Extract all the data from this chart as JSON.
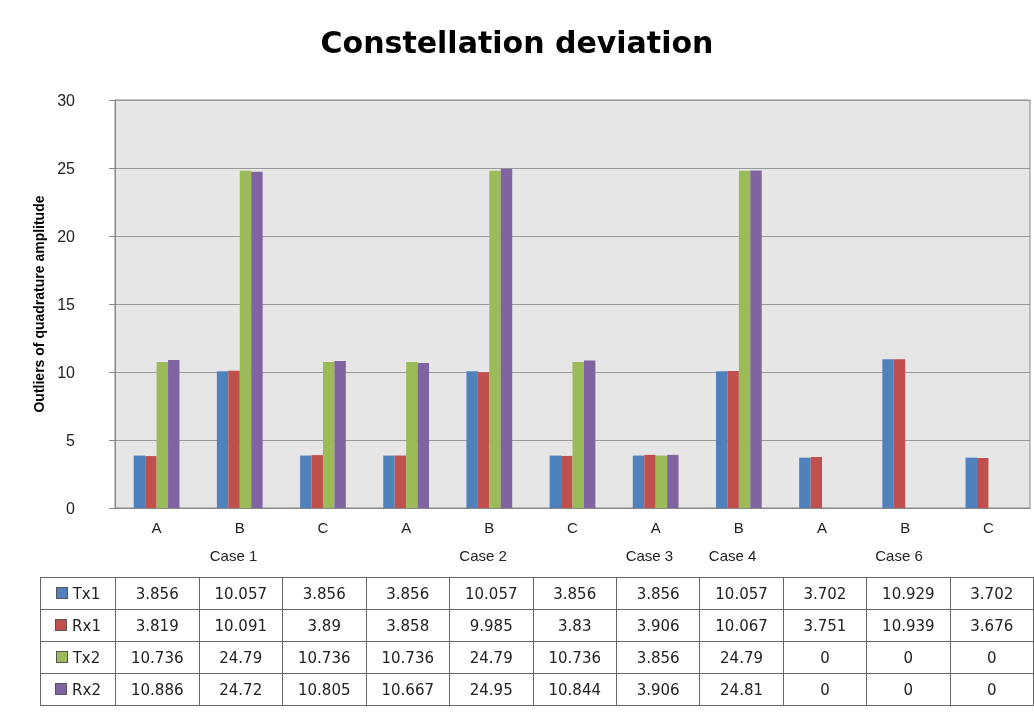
{
  "chart_data": {
    "type": "bar",
    "title": "Constellation deviation",
    "ylabel": "Outliers of quadrature amplitude",
    "categories": [
      "A",
      "B",
      "C",
      "A",
      "B",
      "C",
      "A",
      "B",
      "A",
      "B",
      "C"
    ],
    "series": [
      {
        "name": "Tx1",
        "color": "#4f81bd",
        "values": [
          3.856,
          10.057,
          3.856,
          3.856,
          10.057,
          3.856,
          3.856,
          10.057,
          3.702,
          10.929,
          3.702
        ]
      },
      {
        "name": "Rx1",
        "color": "#c0504d",
        "values": [
          3.819,
          10.091,
          3.89,
          3.858,
          9.985,
          3.83,
          3.906,
          10.067,
          3.751,
          10.939,
          3.676
        ]
      },
      {
        "name": "Tx2",
        "color": "#9bbb59",
        "values": [
          10.736,
          24.79,
          10.736,
          10.736,
          24.79,
          10.736,
          3.856,
          24.79,
          0,
          0,
          0
        ]
      },
      {
        "name": "Rx2",
        "color": "#8064a2",
        "values": [
          10.886,
          24.72,
          10.805,
          10.667,
          24.95,
          10.844,
          3.906,
          24.81,
          0,
          0,
          0
        ]
      }
    ],
    "annotations": [
      "Case 1",
      "Case 2",
      "Case 3",
      "Case 4",
      "Case 6"
    ],
    "ylim": [
      0,
      30
    ],
    "yticks": [
      0,
      5,
      10,
      15,
      20,
      25,
      30
    ],
    "grid": "y",
    "legend": "bottom left",
    "data_labels": true
  }
}
